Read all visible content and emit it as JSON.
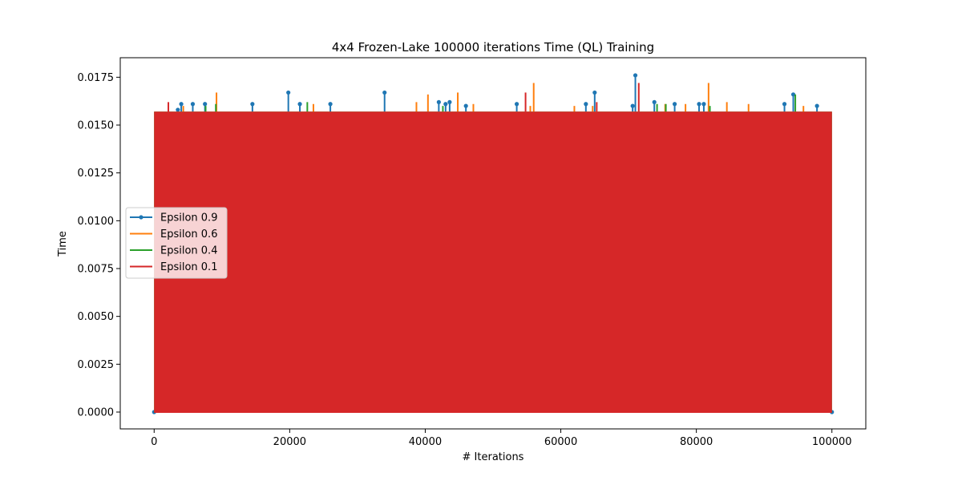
{
  "chart_data": {
    "type": "line",
    "title": "4x4 Frozen-Lake 100000 iterations  Time (QL) Training",
    "xlabel": "# Iterations",
    "ylabel": "Time",
    "xlim": [
      -5000,
      105000
    ],
    "ylim": [
      -0.00088,
      0.01852
    ],
    "x_ticks": [
      0,
      20000,
      40000,
      60000,
      80000,
      100000
    ],
    "x_tick_labels": [
      "0",
      "20000",
      "40000",
      "60000",
      "80000",
      "100000"
    ],
    "y_ticks": [
      0.0,
      0.0025,
      0.005,
      0.0075,
      0.01,
      0.0125,
      0.015,
      0.0175
    ],
    "y_tick_labels": [
      "0.0000",
      "0.0025",
      "0.0050",
      "0.0075",
      "0.0100",
      "0.0125",
      "0.0150",
      "0.0175"
    ],
    "grid": false,
    "legend_position": "center-left",
    "band": {
      "x_start": 0,
      "x_end": 100000,
      "y_min": 0.0,
      "y_max": 0.0157
    },
    "series": [
      {
        "name": "Epsilon 0.9",
        "color": "#1f77b4",
        "marker": "dot",
        "spikes": [
          [
            3500,
            0.0158
          ],
          [
            4000,
            0.0161
          ],
          [
            5700,
            0.0161
          ],
          [
            7500,
            0.0161
          ],
          [
            14500,
            0.0161
          ],
          [
            19800,
            0.0167
          ],
          [
            21500,
            0.0161
          ],
          [
            26000,
            0.0161
          ],
          [
            34000,
            0.0167
          ],
          [
            42000,
            0.0162
          ],
          [
            43000,
            0.0161
          ],
          [
            43600,
            0.0162
          ],
          [
            46000,
            0.016
          ],
          [
            53500,
            0.0161
          ],
          [
            63700,
            0.0161
          ],
          [
            65000,
            0.0167
          ],
          [
            70600,
            0.016
          ],
          [
            71000,
            0.0176
          ],
          [
            73800,
            0.0162
          ],
          [
            76800,
            0.0161
          ],
          [
            80400,
            0.0161
          ],
          [
            81100,
            0.0161
          ],
          [
            93000,
            0.0161
          ],
          [
            94300,
            0.0166
          ],
          [
            97800,
            0.016
          ]
        ]
      },
      {
        "name": "Epsilon 0.6",
        "color": "#ff7f0e",
        "marker": "none",
        "spikes": [
          [
            4300,
            0.016
          ],
          [
            9200,
            0.0167
          ],
          [
            23500,
            0.0161
          ],
          [
            38700,
            0.0162
          ],
          [
            40400,
            0.0166
          ],
          [
            44800,
            0.0167
          ],
          [
            47100,
            0.0161
          ],
          [
            55500,
            0.016
          ],
          [
            56000,
            0.0172
          ],
          [
            62000,
            0.016
          ],
          [
            64700,
            0.016
          ],
          [
            75400,
            0.0161
          ],
          [
            78400,
            0.0161
          ],
          [
            81800,
            0.0172
          ],
          [
            84500,
            0.0162
          ],
          [
            87700,
            0.0161
          ],
          [
            95800,
            0.016
          ]
        ]
      },
      {
        "name": "Epsilon 0.4",
        "color": "#2ca02c",
        "marker": "none",
        "spikes": [
          [
            7600,
            0.016
          ],
          [
            9100,
            0.0161
          ],
          [
            22600,
            0.0162
          ],
          [
            42600,
            0.016
          ],
          [
            74200,
            0.0161
          ],
          [
            75500,
            0.0161
          ],
          [
            82000,
            0.016
          ],
          [
            94600,
            0.0166
          ]
        ]
      },
      {
        "name": "Epsilon 0.1",
        "color": "#d62728",
        "marker": "none",
        "spikes": [
          [
            2100,
            0.0162
          ],
          [
            54800,
            0.0167
          ],
          [
            65300,
            0.0162
          ],
          [
            71500,
            0.0172
          ]
        ]
      }
    ]
  }
}
